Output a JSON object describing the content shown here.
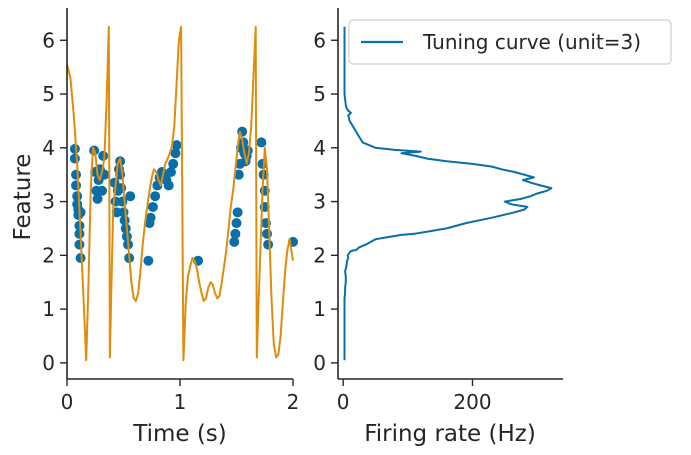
{
  "colors": {
    "spikes": "#0a6fa8",
    "trajectory": "#e08c0c",
    "tuning": "#0a6fa8",
    "axes": "#262626"
  },
  "chart_data": [
    {
      "type": "line",
      "panel": "left",
      "xlabel": "Time (s)",
      "ylabel": "Feature",
      "xlim": [
        0,
        2
      ],
      "ylim": [
        -0.3,
        6.6
      ],
      "xticks": [
        "0",
        "1",
        "2"
      ],
      "yticks": [
        "0",
        "1",
        "2",
        "3",
        "4",
        "5",
        "6"
      ],
      "series": [
        {
          "kind": "line",
          "x": [
            0.0,
            0.03,
            0.06,
            0.09,
            0.12,
            0.15,
            0.17,
            0.19,
            0.21,
            0.23,
            0.25,
            0.27,
            0.29,
            0.31,
            0.33,
            0.35,
            0.37,
            0.38,
            0.39,
            0.41,
            0.43,
            0.45,
            0.47,
            0.49,
            0.51,
            0.53,
            0.55,
            0.57,
            0.59,
            0.61,
            0.63,
            0.65,
            0.67,
            0.69,
            0.71,
            0.73,
            0.75,
            0.77,
            0.79,
            0.81,
            0.83,
            0.85,
            0.87,
            0.89,
            0.91,
            0.93,
            0.95,
            0.97,
            0.99,
            1.01,
            1.03,
            1.04,
            1.05,
            1.07,
            1.09,
            1.11,
            1.13,
            1.15,
            1.17,
            1.19,
            1.21,
            1.23,
            1.25,
            1.27,
            1.29,
            1.31,
            1.33,
            1.35,
            1.37,
            1.39,
            1.41,
            1.43,
            1.45,
            1.47,
            1.49,
            1.51,
            1.53,
            1.55,
            1.57,
            1.59,
            1.61,
            1.63,
            1.65,
            1.67,
            1.68,
            1.69,
            1.71,
            1.73,
            1.75,
            1.77,
            1.79,
            1.81,
            1.83,
            1.85,
            1.87,
            1.89,
            1.91,
            1.93,
            1.95,
            1.97,
            2.0
          ],
          "y": [
            5.55,
            5.3,
            4.6,
            3.7,
            2.4,
            1.0,
            0.05,
            1.5,
            3.2,
            4.0,
            3.9,
            3.5,
            3.4,
            3.55,
            3.8,
            4.8,
            6.25,
            0.1,
            1.2,
            2.9,
            3.3,
            3.7,
            3.8,
            3.5,
            3.0,
            2.5,
            2.0,
            1.5,
            1.2,
            1.15,
            1.3,
            1.7,
            2.2,
            2.6,
            2.9,
            3.2,
            3.45,
            3.6,
            3.55,
            3.4,
            3.3,
            3.5,
            3.7,
            3.8,
            3.9,
            4.05,
            4.4,
            5.2,
            6.0,
            6.25,
            0.05,
            0.5,
            1.1,
            1.6,
            1.8,
            1.95,
            1.9,
            1.75,
            1.5,
            1.3,
            1.15,
            1.2,
            1.4,
            1.5,
            1.45,
            1.3,
            1.2,
            1.25,
            1.5,
            1.8,
            2.1,
            2.5,
            2.9,
            3.2,
            3.6,
            4.0,
            4.3,
            4.15,
            3.9,
            3.7,
            3.9,
            4.4,
            5.3,
            6.25,
            0.1,
            0.8,
            2.0,
            3.2,
            4.0,
            3.6,
            2.4,
            1.2,
            0.35,
            0.1,
            0.15,
            0.5,
            1.1,
            1.7,
            2.1,
            2.3,
            1.9
          ]
        },
        {
          "kind": "scatter",
          "x": [
            0.07,
            0.07,
            0.08,
            0.08,
            0.09,
            0.09,
            0.1,
            0.1,
            0.11,
            0.11,
            0.11,
            0.12,
            0.12,
            0.24,
            0.25,
            0.26,
            0.27,
            0.28,
            0.29,
            0.3,
            0.31,
            0.32,
            0.33,
            0.42,
            0.43,
            0.44,
            0.45,
            0.46,
            0.47,
            0.47,
            0.48,
            0.49,
            0.5,
            0.51,
            0.52,
            0.53,
            0.54,
            0.55,
            0.56,
            0.72,
            0.73,
            0.74,
            0.76,
            0.78,
            0.8,
            0.82,
            0.84,
            0.86,
            0.88,
            0.9,
            0.92,
            0.94,
            0.96,
            0.97,
            1.16,
            1.48,
            1.49,
            1.5,
            1.51,
            1.52,
            1.53,
            1.54,
            1.55,
            1.56,
            1.57,
            1.58,
            1.59,
            1.6,
            1.72,
            1.73,
            1.74,
            1.75,
            1.75,
            1.76,
            1.77,
            1.78,
            2.0
          ],
          "y": [
            3.98,
            3.8,
            3.5,
            3.3,
            3.1,
            2.95,
            2.85,
            2.75,
            2.55,
            2.4,
            2.2,
            1.95,
            2.8,
            3.95,
            3.55,
            3.2,
            3.05,
            3.4,
            3.6,
            3.55,
            3.2,
            3.85,
            3.5,
            3.35,
            3.0,
            2.8,
            3.2,
            3.6,
            3.75,
            3.5,
            3.25,
            3.0,
            2.8,
            2.65,
            2.5,
            2.35,
            2.2,
            1.95,
            3.1,
            1.9,
            2.6,
            2.7,
            2.9,
            3.1,
            3.3,
            3.45,
            3.55,
            3.5,
            3.4,
            3.3,
            3.55,
            3.7,
            3.9,
            4.05,
            1.9,
            2.25,
            2.4,
            2.6,
            2.8,
            3.5,
            3.7,
            4.0,
            4.3,
            4.1,
            3.9,
            3.75,
            3.85,
            3.95,
            4.1,
            3.7,
            3.5,
            3.2,
            2.9,
            2.6,
            2.4,
            2.2,
            2.25
          ]
        }
      ]
    },
    {
      "type": "line",
      "panel": "right",
      "xlabel": "Firing rate (Hz)",
      "xlim": [
        -8,
        340
      ],
      "ylim": [
        -0.3,
        6.6
      ],
      "xticks": [
        "0",
        "200"
      ],
      "yticks": [
        "0",
        "1",
        "2",
        "3",
        "4",
        "5",
        "6"
      ],
      "legend": {
        "placement": "top-right",
        "entries": [
          "Tuning curve (unit=3)"
        ]
      },
      "series": [
        {
          "name": "Tuning curve (unit=3)",
          "rate": [
            2,
            2,
            2,
            2,
            3,
            3,
            4,
            4,
            3,
            5,
            6,
            8,
            7,
            10,
            12,
            20,
            25,
            35,
            50,
            75,
            90,
            110,
            135,
            160,
            190,
            230,
            265,
            280,
            285,
            260,
            250,
            275,
            290,
            300,
            315,
            322,
            305,
            290,
            278,
            295,
            280,
            265,
            245,
            230,
            200,
            160,
            130,
            112,
            90,
            120,
            80,
            50,
            40,
            30,
            25,
            20,
            15,
            10,
            8,
            12,
            7,
            5,
            4,
            3,
            2,
            2,
            2,
            2,
            2,
            2
          ],
          "feature": [
            0.05,
            0.5,
            1.0,
            1.2,
            1.3,
            1.4,
            1.5,
            1.6,
            1.7,
            1.8,
            1.9,
            1.95,
            2.0,
            2.05,
            2.08,
            2.1,
            2.15,
            2.2,
            2.3,
            2.35,
            2.38,
            2.4,
            2.45,
            2.5,
            2.6,
            2.7,
            2.8,
            2.85,
            2.9,
            2.95,
            3.0,
            3.05,
            3.1,
            3.15,
            3.2,
            3.25,
            3.3,
            3.35,
            3.4,
            3.45,
            3.5,
            3.55,
            3.6,
            3.65,
            3.7,
            3.75,
            3.8,
            3.85,
            3.9,
            3.93,
            3.96,
            4.0,
            4.05,
            4.1,
            4.2,
            4.3,
            4.4,
            4.5,
            4.6,
            4.65,
            4.7,
            4.75,
            4.8,
            4.9,
            5.0,
            5.2,
            5.5,
            5.8,
            6.0,
            6.25
          ]
        }
      ]
    }
  ]
}
